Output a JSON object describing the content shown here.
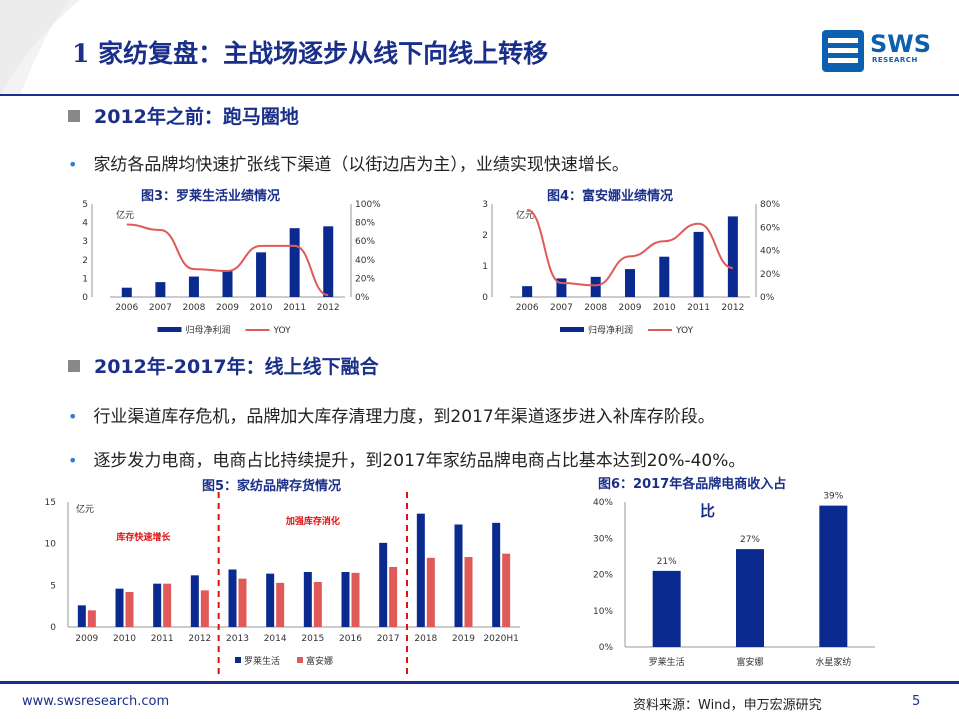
{
  "slide": {
    "title": "1 家纺复盘：主战场逐步从线下向线上转移",
    "logo_text": "SWS",
    "logo_sub": "RESEARCH",
    "footer_url": "www.swsresearch.com",
    "footer_source": "资料来源：Wind，申万宏源研究",
    "page_number": "5",
    "accent_color": "#1a2f8a",
    "bar_color": "#0a2a8f",
    "line_color": "#e05a5a"
  },
  "sections": [
    {
      "heading": "2012年之前：跑马圈地",
      "bullets": [
        "家纺各品牌均快速扩张线下渠道（以街边店为主），业绩实现快速增长。"
      ]
    },
    {
      "heading": "2012年-2017年：线上线下融合",
      "bullets": [
        "行业渠道库存危机，品牌加大库存清理力度，到2017年渠道逐步进入补库存阶段。",
        "逐步发力电商，电商占比持续提升，到2017年家纺品牌电商占比基本达到20%-40%。"
      ]
    }
  ],
  "chart_data": [
    {
      "id": "fig3",
      "type": "bar",
      "title": "图3：罗莱生活业绩情况",
      "unit_label": "亿元",
      "categories": [
        "2006",
        "2007",
        "2008",
        "2009",
        "2010",
        "2011",
        "2012"
      ],
      "series": [
        {
          "name": "归母净利润",
          "kind": "bar",
          "axis": "left",
          "values": [
            0.5,
            0.8,
            1.1,
            1.4,
            2.4,
            3.7,
            3.8
          ]
        },
        {
          "name": "YOY",
          "kind": "line",
          "axis": "right",
          "values": [
            78,
            72,
            30,
            28,
            55,
            55,
            2
          ]
        }
      ],
      "ylim_left": [
        0,
        5
      ],
      "yticks_left": [
        "0",
        "1",
        "2",
        "3",
        "4",
        "5"
      ],
      "ylim_right": [
        0,
        100
      ],
      "yticks_right": [
        "0%",
        "20%",
        "40%",
        "60%",
        "80%",
        "100%"
      ],
      "legend": "bottom"
    },
    {
      "id": "fig4",
      "type": "bar",
      "title": "图4：富安娜业绩情况",
      "unit_label": "亿元",
      "categories": [
        "2006",
        "2007",
        "2008",
        "2009",
        "2010",
        "2011",
        "2012"
      ],
      "series": [
        {
          "name": "归母净利润",
          "kind": "bar",
          "axis": "left",
          "values": [
            0.35,
            0.6,
            0.65,
            0.9,
            1.3,
            2.1,
            2.6
          ]
        },
        {
          "name": "YOY",
          "kind": "line",
          "axis": "right",
          "values": [
            75,
            12,
            10,
            35,
            48,
            63,
            25
          ]
        }
      ],
      "ylim_left": [
        0,
        3
      ],
      "yticks_left": [
        "0",
        "1",
        "2",
        "3"
      ],
      "ylim_right": [
        0,
        80
      ],
      "yticks_right": [
        "0%",
        "20%",
        "40%",
        "60%",
        "80%"
      ],
      "legend": "bottom"
    },
    {
      "id": "fig5",
      "type": "bar",
      "title": "图5：家纺品牌存货情况",
      "unit_label": "亿元",
      "categories": [
        "2009",
        "2010",
        "2011",
        "2012",
        "2013",
        "2014",
        "2015",
        "2016",
        "2017",
        "2018",
        "2019",
        "2020H1"
      ],
      "series": [
        {
          "name": "罗莱生活",
          "values": [
            2.6,
            4.6,
            5.2,
            6.2,
            6.9,
            6.4,
            6.6,
            6.6,
            10.1,
            13.6,
            12.3,
            12.5
          ]
        },
        {
          "name": "富安娜",
          "values": [
            2.0,
            4.2,
            5.2,
            4.4,
            5.8,
            5.3,
            5.4,
            6.5,
            7.2,
            8.3,
            8.4,
            8.8
          ]
        }
      ],
      "ylim": [
        0,
        15
      ],
      "yticks": [
        "0",
        "5",
        "10",
        "15"
      ],
      "annotations": [
        "库存快速增长",
        "加强库存消化"
      ],
      "legend": "bottom"
    },
    {
      "id": "fig6",
      "type": "bar",
      "title": "图6：2017年各品牌电商收入占",
      "title_line2": "比",
      "categories": [
        "罗莱生活",
        "富安娜",
        "水星家纺"
      ],
      "values": [
        21,
        27,
        39
      ],
      "data_labels": [
        "21%",
        "27%",
        "39%"
      ],
      "ylim": [
        0,
        40
      ],
      "yticks": [
        "0%",
        "10%",
        "20%",
        "30%",
        "40%"
      ]
    }
  ]
}
